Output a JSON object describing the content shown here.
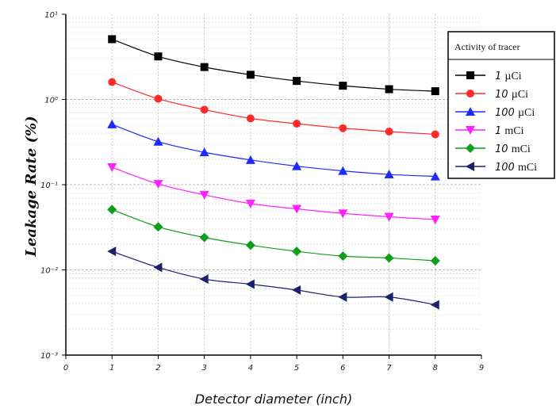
{
  "chart_data": {
    "type": "line",
    "xlabel": "Detector diameter (inch)",
    "ylabel": "Leakage Rate (%)",
    "x_ticks": [
      "0",
      "1",
      "2",
      "3",
      "4",
      "5",
      "6",
      "7",
      "8",
      "9"
    ],
    "xlim": [
      0,
      9
    ],
    "ylim": [
      0.001,
      10
    ],
    "y_scale": "log",
    "y_ticks": [
      {
        "value": 10,
        "label": "10¹"
      },
      {
        "value": 1,
        "label": "10⁰"
      },
      {
        "value": 0.1,
        "label": "10⁻¹"
      },
      {
        "value": 0.01,
        "label": "10⁻²"
      },
      {
        "value": 0.001,
        "label": "10⁻³"
      }
    ],
    "grid": true,
    "legend_title": "Activity of tracer",
    "legend_position": "top-right",
    "x": [
      1,
      2,
      3,
      4,
      5,
      6,
      7,
      8
    ],
    "series": [
      {
        "name": "1 µCi",
        "num": "1",
        "unit": "µCi",
        "color": "#000000",
        "marker": "square",
        "values": [
          5.1,
          3.2,
          2.4,
          1.95,
          1.65,
          1.45,
          1.32,
          1.25
        ]
      },
      {
        "name": "10 µCi",
        "num": "10",
        "unit": "µCi",
        "color": "#ff2a2a",
        "marker": "circle",
        "values": [
          1.6,
          1.02,
          0.76,
          0.6,
          0.52,
          0.46,
          0.42,
          0.39
        ]
      },
      {
        "name": "100 µCi",
        "num": "100",
        "unit": "µCi",
        "color": "#1c2bff",
        "marker": "triangle-up",
        "values": [
          0.51,
          0.32,
          0.24,
          0.195,
          0.165,
          0.145,
          0.132,
          0.125
        ]
      },
      {
        "name": "1 mCi",
        "num": "1",
        "unit": "mCi",
        "color": "#ff22ff",
        "marker": "triangle-down",
        "values": [
          0.16,
          0.102,
          0.076,
          0.06,
          0.052,
          0.046,
          0.042,
          0.039
        ]
      },
      {
        "name": "10 mCi",
        "num": "10",
        "unit": "mCi",
        "color": "#0f9d1a",
        "marker": "diamond",
        "values": [
          0.051,
          0.032,
          0.024,
          0.0195,
          0.0165,
          0.0145,
          0.0138,
          0.0128
        ]
      },
      {
        "name": "100 mCi",
        "num": "100",
        "unit": "mCi",
        "color": "#1a1f6e",
        "marker": "triangle-left",
        "values": [
          0.0165,
          0.0107,
          0.0078,
          0.0068,
          0.0058,
          0.0048,
          0.0048,
          0.0039
        ]
      }
    ]
  }
}
